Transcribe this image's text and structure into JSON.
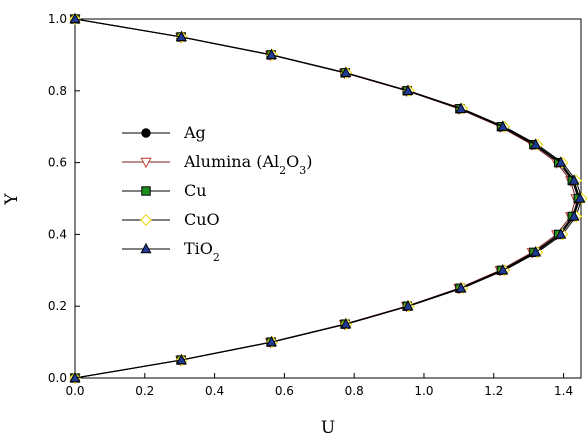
{
  "chart_data": {
    "type": "line",
    "title": "",
    "xlabel": "U",
    "ylabel": "Y",
    "xlim": [
      0.0,
      1.45
    ],
    "ylim": [
      0.0,
      1.0
    ],
    "xticks": [
      "0.0",
      "0.2",
      "0.4",
      "0.6",
      "0.8",
      "1.0",
      "1.2",
      "1.4"
    ],
    "yticks": [
      "0.0",
      "0.2",
      "0.4",
      "0.6",
      "0.8",
      "1.0"
    ],
    "grid": false,
    "legend_position": "left-center",
    "y": [
      0.0,
      0.05,
      0.1,
      0.15,
      0.2,
      0.25,
      0.3,
      0.35,
      0.4,
      0.45,
      0.5,
      0.55,
      0.6,
      0.65,
      0.7,
      0.75,
      0.8,
      0.85,
      0.9,
      0.95,
      1.0
    ],
    "series": [
      {
        "name": "Ag",
        "label_parts": [
          {
            "t": "Ag",
            "sub": false
          }
        ],
        "marker": "circle",
        "marker_fill": "#000000",
        "marker_stroke": "#000000",
        "line_color": "#000000",
        "x": [
          0.0,
          0.305,
          0.563,
          0.775,
          0.953,
          1.105,
          1.225,
          1.318,
          1.39,
          1.428,
          1.445,
          1.428,
          1.39,
          1.318,
          1.225,
          1.105,
          0.953,
          0.775,
          0.563,
          0.305,
          0.0
        ]
      },
      {
        "name": "Alumina (Al2O3)",
        "label_parts": [
          {
            "t": "Alumina (Al",
            "sub": false
          },
          {
            "t": "2",
            "sub": true
          },
          {
            "t": "O",
            "sub": false
          },
          {
            "t": "3",
            "sub": true
          },
          {
            "t": ")",
            "sub": false
          }
        ],
        "marker": "triangle-down",
        "marker_fill": "#ffffff",
        "marker_stroke": "#c0392b",
        "line_color": "#7a1e1e",
        "x": [
          0.0,
          0.303,
          0.56,
          0.772,
          0.95,
          1.1,
          1.218,
          1.31,
          1.38,
          1.42,
          1.435,
          1.42,
          1.38,
          1.31,
          1.218,
          1.1,
          0.95,
          0.772,
          0.56,
          0.303,
          0.0
        ]
      },
      {
        "name": "Cu",
        "label_parts": [
          {
            "t": "Cu",
            "sub": false
          }
        ],
        "marker": "square",
        "marker_fill": "#1e8f1e",
        "marker_stroke": "#000000",
        "line_color": "#000000",
        "x": [
          0.0,
          0.304,
          0.562,
          0.774,
          0.952,
          1.103,
          1.222,
          1.315,
          1.386,
          1.425,
          1.442,
          1.425,
          1.386,
          1.315,
          1.222,
          1.103,
          0.952,
          0.774,
          0.562,
          0.304,
          0.0
        ]
      },
      {
        "name": "CuO",
        "label_parts": [
          {
            "t": "CuO",
            "sub": false
          }
        ],
        "marker": "diamond",
        "marker_fill": "#ffffff",
        "marker_stroke": "#e6d600",
        "line_color": "#000000",
        "x": [
          0.0,
          0.306,
          0.565,
          0.778,
          0.957,
          1.11,
          1.23,
          1.325,
          1.397,
          1.436,
          1.452,
          1.436,
          1.397,
          1.325,
          1.23,
          1.11,
          0.957,
          0.778,
          0.565,
          0.306,
          0.0
        ]
      },
      {
        "name": "TiO2",
        "label_parts": [
          {
            "t": "TiO",
            "sub": false
          },
          {
            "t": "2",
            "sub": true
          }
        ],
        "marker": "triangle-up",
        "marker_fill": "#1f3a93",
        "marker_stroke": "#000000",
        "line_color": "#000000",
        "x": [
          0.0,
          0.305,
          0.563,
          0.776,
          0.954,
          1.106,
          1.226,
          1.32,
          1.392,
          1.43,
          1.447,
          1.43,
          1.392,
          1.32,
          1.226,
          1.106,
          0.954,
          0.776,
          0.563,
          0.305,
          0.0
        ]
      }
    ]
  }
}
